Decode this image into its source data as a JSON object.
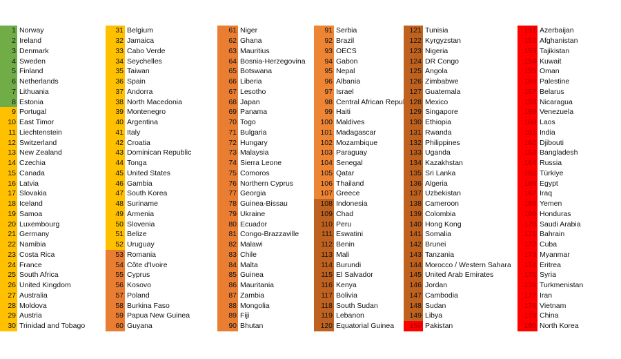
{
  "colors": {
    "green": "#70ad47",
    "yellow": "#ffc000",
    "orange": "#ee8535",
    "orange_dark": "#e97d32",
    "brown": "#c0621f",
    "red": "#ff0000"
  },
  "columns": [
    {
      "rows": [
        [
          "1",
          "Norway",
          "green"
        ],
        [
          "2",
          "Ireland",
          "green"
        ],
        [
          "3",
          "Denmark",
          "green"
        ],
        [
          "4",
          "Sweden",
          "green"
        ],
        [
          "5",
          "Finland",
          "green"
        ],
        [
          "6",
          "Netherlands",
          "green"
        ],
        [
          "7",
          "Lithuania",
          "green"
        ],
        [
          "8",
          "Estonia",
          "green"
        ],
        [
          "9",
          "Portugal",
          "yellow"
        ],
        [
          "10",
          "East Timor",
          "yellow"
        ],
        [
          "11",
          "Liechtenstein",
          "yellow"
        ],
        [
          "12",
          "Switzerland",
          "yellow"
        ],
        [
          "13",
          "New Zealand",
          "yellow"
        ],
        [
          "14",
          "Czechia",
          "yellow"
        ],
        [
          "15",
          "Canada",
          "yellow"
        ],
        [
          "16",
          "Latvia",
          "yellow"
        ],
        [
          "17",
          "Slovakia",
          "yellow"
        ],
        [
          "18",
          "Iceland",
          "yellow"
        ],
        [
          "19",
          "Samoa",
          "yellow"
        ],
        [
          "20",
          "Luxembourg",
          "yellow"
        ],
        [
          "21",
          "Germany",
          "yellow"
        ],
        [
          "22",
          "Namibia",
          "yellow"
        ],
        [
          "23",
          "Costa Rica",
          "yellow"
        ],
        [
          "24",
          "France",
          "yellow"
        ],
        [
          "25",
          "South Africa",
          "yellow"
        ],
        [
          "26",
          "United Kingdom",
          "yellow"
        ],
        [
          "27",
          "Australia",
          "yellow"
        ],
        [
          "28",
          "Moldova",
          "yellow"
        ],
        [
          "29",
          "Austria",
          "yellow"
        ],
        [
          "30",
          "Trinidad and Tobago",
          "yellow"
        ]
      ]
    },
    {
      "rows": [
        [
          "31",
          "Belgium",
          "yellow"
        ],
        [
          "32",
          "Jamaica",
          "yellow"
        ],
        [
          "33",
          "Cabo Verde",
          "yellow"
        ],
        [
          "34",
          "Seychelles",
          "yellow"
        ],
        [
          "35",
          "Taiwan",
          "yellow"
        ],
        [
          "36",
          "Spain",
          "yellow"
        ],
        [
          "37",
          "Andorra",
          "yellow"
        ],
        [
          "38",
          "North Macedonia",
          "yellow"
        ],
        [
          "39",
          "Montenegro",
          "yellow"
        ],
        [
          "40",
          "Argentina",
          "yellow"
        ],
        [
          "41",
          "Italy",
          "yellow"
        ],
        [
          "42",
          "Croatia",
          "yellow"
        ],
        [
          "43",
          "Dominican Republic",
          "yellow"
        ],
        [
          "44",
          "Tonga",
          "yellow"
        ],
        [
          "45",
          "United States",
          "yellow"
        ],
        [
          "46",
          "Gambia",
          "yellow"
        ],
        [
          "47",
          "South Korea",
          "yellow"
        ],
        [
          "48",
          "Suriname",
          "yellow"
        ],
        [
          "49",
          "Armenia",
          "yellow"
        ],
        [
          "50",
          "Slovenia",
          "yellow"
        ],
        [
          "51",
          "Belize",
          "yellow"
        ],
        [
          "52",
          "Uruguay",
          "yellow"
        ],
        [
          "53",
          "Romania",
          "orange_dark"
        ],
        [
          "54",
          "Côte d'Ivoire",
          "orange_dark"
        ],
        [
          "55",
          "Cyprus",
          "orange_dark"
        ],
        [
          "56",
          "Kosovo",
          "orange_dark"
        ],
        [
          "57",
          "Poland",
          "orange_dark"
        ],
        [
          "58",
          "Burkina Faso",
          "orange_dark"
        ],
        [
          "59",
          "Papua New Guinea",
          "orange_dark"
        ],
        [
          "60",
          "Guyana",
          "orange_dark"
        ]
      ]
    },
    {
      "rows": [
        [
          "61",
          "Niger",
          "orange_dark"
        ],
        [
          "62",
          "Ghana",
          "orange_dark"
        ],
        [
          "63",
          "Mauritius",
          "orange_dark"
        ],
        [
          "64",
          "Bosnia-Herzegovina",
          "orange_dark"
        ],
        [
          "65",
          "Botswana",
          "orange_dark"
        ],
        [
          "66",
          "Liberia",
          "orange_dark"
        ],
        [
          "67",
          "Lesotho",
          "orange_dark"
        ],
        [
          "68",
          "Japan",
          "orange_dark"
        ],
        [
          "69",
          "Panama",
          "orange_dark"
        ],
        [
          "70",
          "Togo",
          "orange_dark"
        ],
        [
          "71",
          "Bulgaria",
          "orange_dark"
        ],
        [
          "72",
          "Hungary",
          "orange_dark"
        ],
        [
          "73",
          "Malaysia",
          "orange_dark"
        ],
        [
          "74",
          "Sierra Leone",
          "orange_dark"
        ],
        [
          "75",
          "Comoros",
          "orange_dark"
        ],
        [
          "76",
          "Northern Cyprus",
          "orange_dark"
        ],
        [
          "77",
          "Georgia",
          "orange_dark"
        ],
        [
          "78",
          "Guinea-Bissau",
          "orange_dark"
        ],
        [
          "79",
          "Ukraine",
          "orange_dark"
        ],
        [
          "80",
          "Ecuador",
          "orange_dark"
        ],
        [
          "81",
          "Congo-Brazzaville",
          "orange_dark"
        ],
        [
          "82",
          "Malawi",
          "orange_dark"
        ],
        [
          "83",
          "Chile",
          "orange_dark"
        ],
        [
          "84",
          "Malta",
          "orange_dark"
        ],
        [
          "85",
          "Guinea",
          "orange_dark"
        ],
        [
          "86",
          "Mauritania",
          "orange_dark"
        ],
        [
          "87",
          "Zambia",
          "orange_dark"
        ],
        [
          "88",
          "Mongolia",
          "orange_dark"
        ],
        [
          "89",
          "Fiji",
          "orange_dark"
        ],
        [
          "90",
          "Bhutan",
          "orange_dark"
        ]
      ]
    },
    {
      "rows": [
        [
          "91",
          "Serbia",
          "orange"
        ],
        [
          "92",
          "Brazil",
          "orange"
        ],
        [
          "93",
          "OECS",
          "orange"
        ],
        [
          "94",
          "Gabon",
          "orange"
        ],
        [
          "95",
          "Nepal",
          "orange"
        ],
        [
          "96",
          "Albania",
          "orange"
        ],
        [
          "97",
          "Israel",
          "orange"
        ],
        [
          "98",
          "Central African Republic",
          "orange"
        ],
        [
          "99",
          "Haiti",
          "orange"
        ],
        [
          "100",
          "Maldives",
          "orange"
        ],
        [
          "101",
          "Madagascar",
          "orange"
        ],
        [
          "102",
          "Mozambique",
          "orange"
        ],
        [
          "103",
          "Paraguay",
          "orange"
        ],
        [
          "104",
          "Senegal",
          "orange"
        ],
        [
          "105",
          "Qatar",
          "orange"
        ],
        [
          "106",
          "Thailand",
          "orange"
        ],
        [
          "107",
          "Greece",
          "orange"
        ],
        [
          "108",
          "Indonesia",
          "brown"
        ],
        [
          "109",
          "Chad",
          "brown"
        ],
        [
          "110",
          "Peru",
          "brown"
        ],
        [
          "111",
          "Eswatini",
          "brown"
        ],
        [
          "112",
          "Benin",
          "brown"
        ],
        [
          "113",
          "Mali",
          "brown"
        ],
        [
          "114",
          "Burundi",
          "brown"
        ],
        [
          "115",
          "El Salvador",
          "brown"
        ],
        [
          "116",
          "Kenya",
          "brown"
        ],
        [
          "117",
          "Bolivia",
          "brown"
        ],
        [
          "118",
          "South Sudan",
          "brown"
        ],
        [
          "119",
          "Lebanon",
          "brown"
        ],
        [
          "120",
          "Equatorial Guinea",
          "brown"
        ]
      ]
    },
    {
      "rows": [
        [
          "121",
          "Tunisia",
          "brown"
        ],
        [
          "122",
          "Kyrgyzstan",
          "brown"
        ],
        [
          "123",
          "Nigeria",
          "brown"
        ],
        [
          "124",
          "DR Congo",
          "brown"
        ],
        [
          "125",
          "Angola",
          "brown"
        ],
        [
          "126",
          "Zimbabwe",
          "brown"
        ],
        [
          "127",
          "Guatemala",
          "brown"
        ],
        [
          "128",
          "Mexico",
          "brown"
        ],
        [
          "129",
          "Singapore",
          "brown"
        ],
        [
          "130",
          "Ethiopia",
          "brown"
        ],
        [
          "131",
          "Rwanda",
          "brown"
        ],
        [
          "132",
          "Philippines",
          "brown"
        ],
        [
          "133",
          "Uganda",
          "brown"
        ],
        [
          "134",
          "Kazakhstan",
          "brown"
        ],
        [
          "135",
          "Sri Lanka",
          "brown"
        ],
        [
          "136",
          "Algeria",
          "brown"
        ],
        [
          "137",
          "Uzbekistan",
          "brown"
        ],
        [
          "138",
          "Cameroon",
          "brown"
        ],
        [
          "139",
          "Colombia",
          "brown"
        ],
        [
          "140",
          "Hong Kong",
          "brown"
        ],
        [
          "141",
          "Somalia",
          "brown"
        ],
        [
          "142",
          "Brunei",
          "brown"
        ],
        [
          "143",
          "Tanzania",
          "brown"
        ],
        [
          "144",
          "Morocco / Western Sahara",
          "brown"
        ],
        [
          "145",
          "United Arab Emirates",
          "brown"
        ],
        [
          "146",
          "Jordan",
          "brown"
        ],
        [
          "147",
          "Cambodia",
          "brown"
        ],
        [
          "148",
          "Sudan",
          "brown"
        ],
        [
          "149",
          "Libya",
          "brown"
        ],
        [
          "150",
          "Pakistan",
          "red"
        ]
      ]
    },
    {
      "rows": [
        [
          "151",
          "Azerbaijan",
          "red"
        ],
        [
          "152",
          "Afghanistan",
          "red"
        ],
        [
          "153",
          "Tajikistan",
          "red"
        ],
        [
          "154",
          "Kuwait",
          "red"
        ],
        [
          "155",
          "Oman",
          "red"
        ],
        [
          "156",
          "Palestine",
          "red"
        ],
        [
          "157",
          "Belarus",
          "red"
        ],
        [
          "158",
          "Nicaragua",
          "red"
        ],
        [
          "159",
          "Venezuela",
          "red"
        ],
        [
          "160",
          "Laos",
          "red"
        ],
        [
          "161",
          "India",
          "red"
        ],
        [
          "162",
          "Djibouti",
          "red"
        ],
        [
          "163",
          "Bangladesh",
          "red"
        ],
        [
          "164",
          "Russia",
          "red"
        ],
        [
          "165",
          "Türkiye",
          "red"
        ],
        [
          "166",
          "Egypt",
          "red"
        ],
        [
          "167",
          "Iraq",
          "red"
        ],
        [
          "168",
          "Yemen",
          "red"
        ],
        [
          "169",
          "Honduras",
          "red"
        ],
        [
          "170",
          "Saudi Arabia",
          "red"
        ],
        [
          "171",
          "Bahrain",
          "red"
        ],
        [
          "172",
          "Cuba",
          "red"
        ],
        [
          "173",
          "Myanmar",
          "red"
        ],
        [
          "174",
          "Eritrea",
          "red"
        ],
        [
          "175",
          "Syria",
          "red"
        ],
        [
          "176",
          "Turkmenistan",
          "red"
        ],
        [
          "177",
          "Iran",
          "red"
        ],
        [
          "178",
          "Vietnam",
          "red"
        ],
        [
          "179",
          "China",
          "red"
        ],
        [
          "180",
          "North Korea",
          "red"
        ]
      ]
    }
  ]
}
